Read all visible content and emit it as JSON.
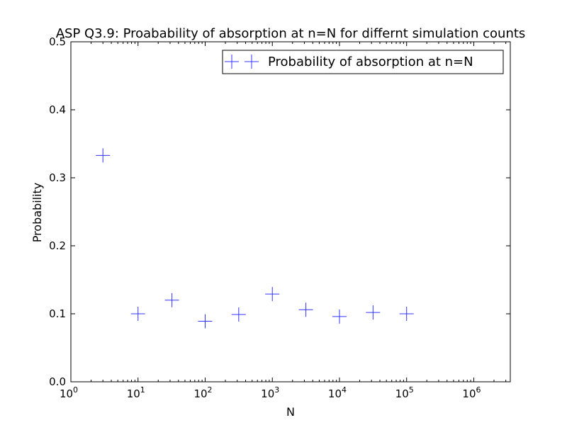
{
  "chart_data": {
    "type": "scatter",
    "title": "ASP Q3.9: Proabability of absorption at n=N for differnt simulation counts",
    "xlabel": "N",
    "ylabel": "Probability",
    "x_scale": "log",
    "xlim": [
      1,
      3500000
    ],
    "ylim": [
      0,
      0.5
    ],
    "x_ticks": [
      {
        "value": 1,
        "base": "10",
        "exp": "0"
      },
      {
        "value": 10,
        "base": "10",
        "exp": "1"
      },
      {
        "value": 100,
        "base": "10",
        "exp": "2"
      },
      {
        "value": 1000,
        "base": "10",
        "exp": "3"
      },
      {
        "value": 10000,
        "base": "10",
        "exp": "4"
      },
      {
        "value": 100000,
        "base": "10",
        "exp": "5"
      },
      {
        "value": 1000000,
        "base": "10",
        "exp": "6"
      }
    ],
    "y_ticks": [
      {
        "value": 0,
        "label": "0.0"
      },
      {
        "value": 0.1,
        "label": "0.1"
      },
      {
        "value": 0.2,
        "label": "0.2"
      },
      {
        "value": 0.3,
        "label": "0.3"
      },
      {
        "value": 0.4,
        "label": "0.4"
      },
      {
        "value": 0.5,
        "label": "0.5"
      }
    ],
    "grid": false,
    "legend_position": "top-right",
    "series": [
      {
        "name": "Probability of absorption at n=N",
        "color": "#3333ff",
        "marker": "plus",
        "x": [
          3,
          10,
          32,
          100,
          316,
          1000,
          3162,
          10000,
          31623,
          100000
        ],
        "y": [
          0.333,
          0.1,
          0.12,
          0.089,
          0.099,
          0.129,
          0.106,
          0.096,
          0.102,
          0.1
        ]
      }
    ]
  }
}
